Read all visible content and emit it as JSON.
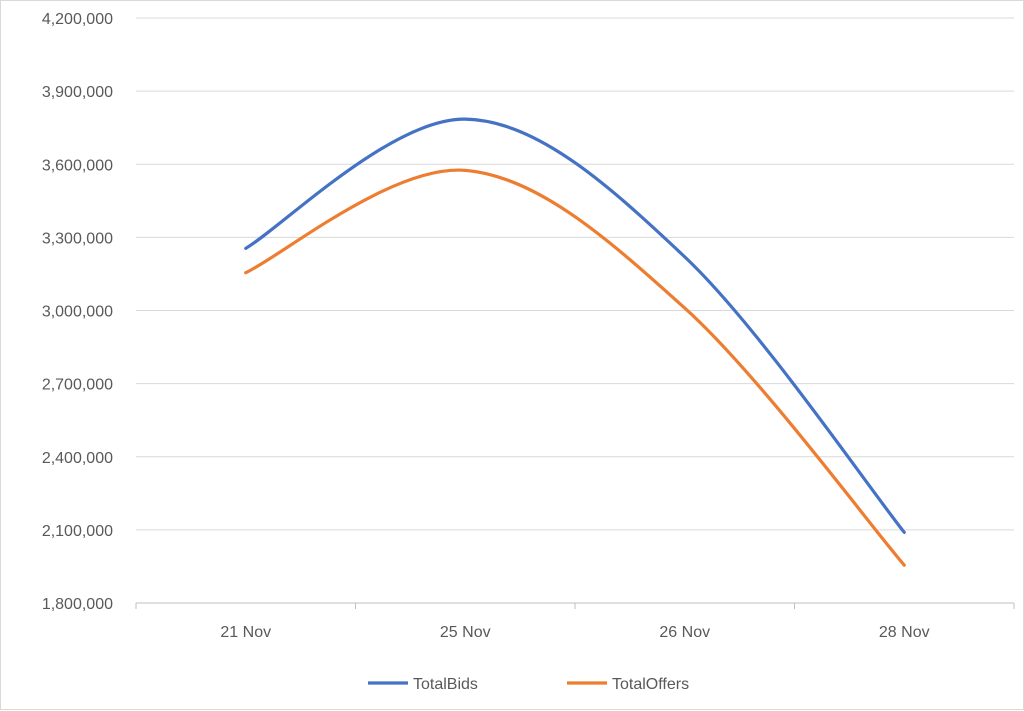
{
  "chart_data": {
    "type": "line",
    "smooth": true,
    "categories": [
      "21 Nov",
      "25 Nov",
      "26 Nov",
      "28 Nov"
    ],
    "series": [
      {
        "name": "TotalBids",
        "color": "#4472c4",
        "values": [
          3255000,
          3785000,
          3220000,
          2090000
        ]
      },
      {
        "name": "TotalOffers",
        "color": "#ed7d31",
        "values": [
          3155000,
          3575000,
          3010000,
          1955000
        ]
      }
    ],
    "ylim": [
      1800000,
      4200000
    ],
    "y_ticks": [
      1800000,
      2100000,
      2400000,
      2700000,
      3000000,
      3300000,
      3600000,
      3900000,
      4200000
    ],
    "y_tick_labels": [
      "1,800,000",
      "2,100,000",
      "2,400,000",
      "2,700,000",
      "3,000,000",
      "3,300,000",
      "3,600,000",
      "3,900,000",
      "4,200,000"
    ],
    "grid": true,
    "legend_position": "bottom"
  }
}
